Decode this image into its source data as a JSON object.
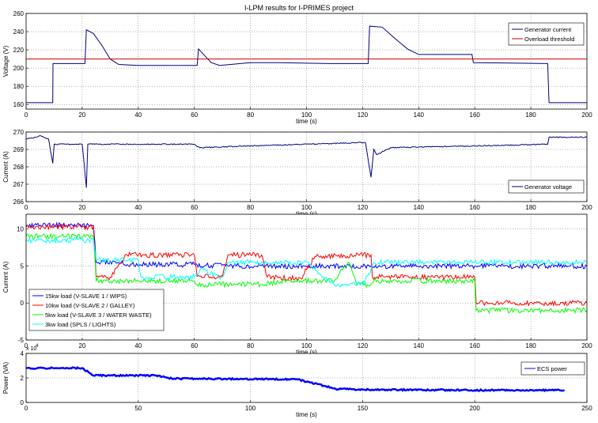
{
  "figure_title": "I-LPM results for I-PRIMES project",
  "chart_data": [
    {
      "type": "line",
      "ylabel": "Voltage (V)",
      "xlabel": "time (s)",
      "xlim": [
        0,
        200
      ],
      "ylim": [
        155,
        260
      ],
      "xticks": [
        0,
        20,
        40,
        60,
        80,
        100,
        120,
        140,
        160,
        180,
        200
      ],
      "yticks": [
        160,
        180,
        200,
        220,
        240,
        260
      ],
      "grid": true,
      "legend_position": "top-right",
      "series": [
        {
          "name": "Generator current",
          "color": "#000080",
          "points": [
            [
              0,
              162
            ],
            [
              9.5,
              162
            ],
            [
              9.6,
              205
            ],
            [
              21,
              205
            ],
            [
              21.5,
              242
            ],
            [
              24,
              238
            ],
            [
              27,
              225
            ],
            [
              30,
              210
            ],
            [
              33,
              204
            ],
            [
              40,
              203
            ],
            [
              61,
              203
            ],
            [
              61.5,
              221
            ],
            [
              63,
              216
            ],
            [
              66,
              206
            ],
            [
              69,
              203
            ],
            [
              80,
              206
            ],
            [
              90,
              206
            ],
            [
              108,
              205
            ],
            [
              122,
              205
            ],
            [
              122.5,
              246
            ],
            [
              127,
              245
            ],
            [
              131,
              234
            ],
            [
              136,
              221
            ],
            [
              140,
              215
            ],
            [
              159,
              215
            ],
            [
              159.5,
              206
            ],
            [
              186,
              205
            ],
            [
              186.5,
              162
            ],
            [
              200,
              162
            ]
          ]
        },
        {
          "name": "Overload threshold",
          "color": "#cc0000",
          "points": [
            [
              0,
              210
            ],
            [
              200,
              210
            ]
          ]
        }
      ]
    },
    {
      "type": "line",
      "ylabel": "Current (A)",
      "xlabel": "time (s)",
      "xlim": [
        0,
        200
      ],
      "ylim": [
        266,
        270
      ],
      "xticks": [
        0,
        20,
        40,
        60,
        80,
        100,
        120,
        140,
        160,
        180,
        200
      ],
      "yticks": [
        266,
        267,
        268,
        269,
        270
      ],
      "grid": true,
      "legend_position": "bottom-right",
      "series": [
        {
          "name": "Generator voltage",
          "color": "#000080",
          "points": [
            [
              0,
              269.6
            ],
            [
              3,
              269.7
            ],
            [
              5,
              269.8
            ],
            [
              8,
              269.6
            ],
            [
              9.5,
              268.2
            ],
            [
              10,
              269.3
            ],
            [
              20,
              269.3
            ],
            [
              21.5,
              266.8
            ],
            [
              22,
              269.3
            ],
            [
              40,
              269.3
            ],
            [
              60,
              269.3
            ],
            [
              62,
              269.1
            ],
            [
              80,
              269.2
            ],
            [
              100,
              269.3
            ],
            [
              121,
              269.4
            ],
            [
              123,
              267.4
            ],
            [
              124,
              269.0
            ],
            [
              125,
              268.7
            ],
            [
              130,
              269.1
            ],
            [
              160,
              269.2
            ],
            [
              186,
              269.3
            ],
            [
              186.5,
              269.7
            ],
            [
              200,
              269.7
            ]
          ]
        }
      ]
    },
    {
      "type": "line",
      "ylabel": "Current (A)",
      "xlabel": "time (s)",
      "xlim": [
        0,
        200
      ],
      "ylim": [
        -5,
        12
      ],
      "xticks": [
        0,
        20,
        40,
        60,
        80,
        100,
        120,
        140,
        160,
        180,
        200
      ],
      "yticks": [
        -5,
        0,
        5,
        10
      ],
      "grid": true,
      "legend_position": "bottom-left",
      "series": [
        {
          "name": "15kw load (V-SLAVE 1 / WIPS)",
          "color": "#0000ff",
          "points": [
            [
              0,
              10.5
            ],
            [
              24,
              10.5
            ],
            [
              25,
              5.5
            ],
            [
              33,
              5.5
            ],
            [
              36,
              5.2
            ],
            [
              60,
              5.2
            ],
            [
              72,
              5.0
            ],
            [
              100,
              5.0
            ],
            [
              123,
              5.0
            ],
            [
              130,
              5.0
            ],
            [
              160,
              5.0
            ],
            [
              200,
              5.0
            ]
          ]
        },
        {
          "name": "10kw load (V-SLAVE 2 / GALLEY)",
          "color": "#ff0000",
          "points": [
            [
              0,
              10.3
            ],
            [
              24,
              10.3
            ],
            [
              25,
              3.5
            ],
            [
              30,
              3.5
            ],
            [
              33,
              5.2
            ],
            [
              36,
              6.5
            ],
            [
              60,
              6.5
            ],
            [
              61,
              3.6
            ],
            [
              70,
              3.6
            ],
            [
              72,
              6.5
            ],
            [
              84,
              6.5
            ],
            [
              86,
              3.5
            ],
            [
              98,
              3.3
            ],
            [
              100,
              4.5
            ],
            [
              103,
              6.3
            ],
            [
              123,
              6.5
            ],
            [
              123.5,
              3.5
            ],
            [
              160,
              3.5
            ],
            [
              160.5,
              0
            ],
            [
              200,
              0
            ]
          ]
        },
        {
          "name": "5kw load (V-SLAVE 3 / WATER WASTE)",
          "color": "#00ff00",
          "points": [
            [
              0,
              9.0
            ],
            [
              24,
              9.0
            ],
            [
              25,
              3.0
            ],
            [
              40,
              3.0
            ],
            [
              60,
              3.0
            ],
            [
              61,
              2.5
            ],
            [
              84,
              2.5
            ],
            [
              90,
              2.8
            ],
            [
              98,
              3.0
            ],
            [
              110,
              3.0
            ],
            [
              115,
              5.5
            ],
            [
              118,
              2.5
            ],
            [
              123,
              2.5
            ],
            [
              124,
              3.0
            ],
            [
              160,
              3.0
            ],
            [
              160.5,
              -1.0
            ],
            [
              200,
              -1.0
            ]
          ]
        },
        {
          "name": "3kw load (SPLS / LIGHTS)",
          "color": "#00ffff",
          "points": [
            [
              0,
              8.5
            ],
            [
              24,
              8.5
            ],
            [
              25,
              5.8
            ],
            [
              40,
              5.8
            ],
            [
              41,
              3.5
            ],
            [
              60,
              3.5
            ],
            [
              62,
              4.5
            ],
            [
              70,
              3.5
            ],
            [
              72,
              5.5
            ],
            [
              90,
              5.5
            ],
            [
              100,
              5.5
            ],
            [
              110,
              2.5
            ],
            [
              120,
              2.5
            ],
            [
              123,
              4.5
            ],
            [
              124,
              5.5
            ],
            [
              200,
              5.5
            ]
          ]
        }
      ]
    },
    {
      "type": "line",
      "ylabel": "Power (VA)",
      "xlabel": "time (s)",
      "xlim": [
        0,
        250
      ],
      "ylim": [
        0,
        4
      ],
      "y_multiplier_label": "x 10",
      "y_multiplier_exponent": "4",
      "xticks": [
        0,
        50,
        100,
        150,
        200,
        250
      ],
      "yticks": [
        0,
        2,
        4
      ],
      "grid": true,
      "legend_position": "top-right",
      "series": [
        {
          "name": "ECS power",
          "color": "#0000ff",
          "points": [
            [
              0,
              2.8
            ],
            [
              25,
              2.8
            ],
            [
              30,
              2.2
            ],
            [
              58,
              2.2
            ],
            [
              65,
              1.95
            ],
            [
              120,
              1.9
            ],
            [
              130,
              1.5
            ],
            [
              138,
              1.1
            ],
            [
              150,
              1.05
            ],
            [
              200,
              1.0
            ],
            [
              240,
              1.0
            ]
          ]
        }
      ]
    }
  ]
}
